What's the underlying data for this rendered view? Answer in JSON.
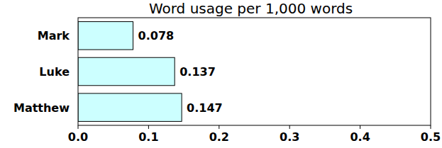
{
  "chart_data": {
    "type": "bar",
    "title": "Word usage per 1,000 words",
    "orientation": "horizontal",
    "categories": [
      "Mark",
      "Luke",
      "Matthew"
    ],
    "values": [
      0.078,
      0.137,
      0.147
    ],
    "color": "#ccffff",
    "xlim": [
      0,
      0.5
    ],
    "xticks": [
      {
        "value": 0,
        "label": "0.0"
      },
      0.1,
      0.2,
      0.3,
      0.4,
      0.5
    ],
    "grid": false,
    "data_labels": true
  }
}
